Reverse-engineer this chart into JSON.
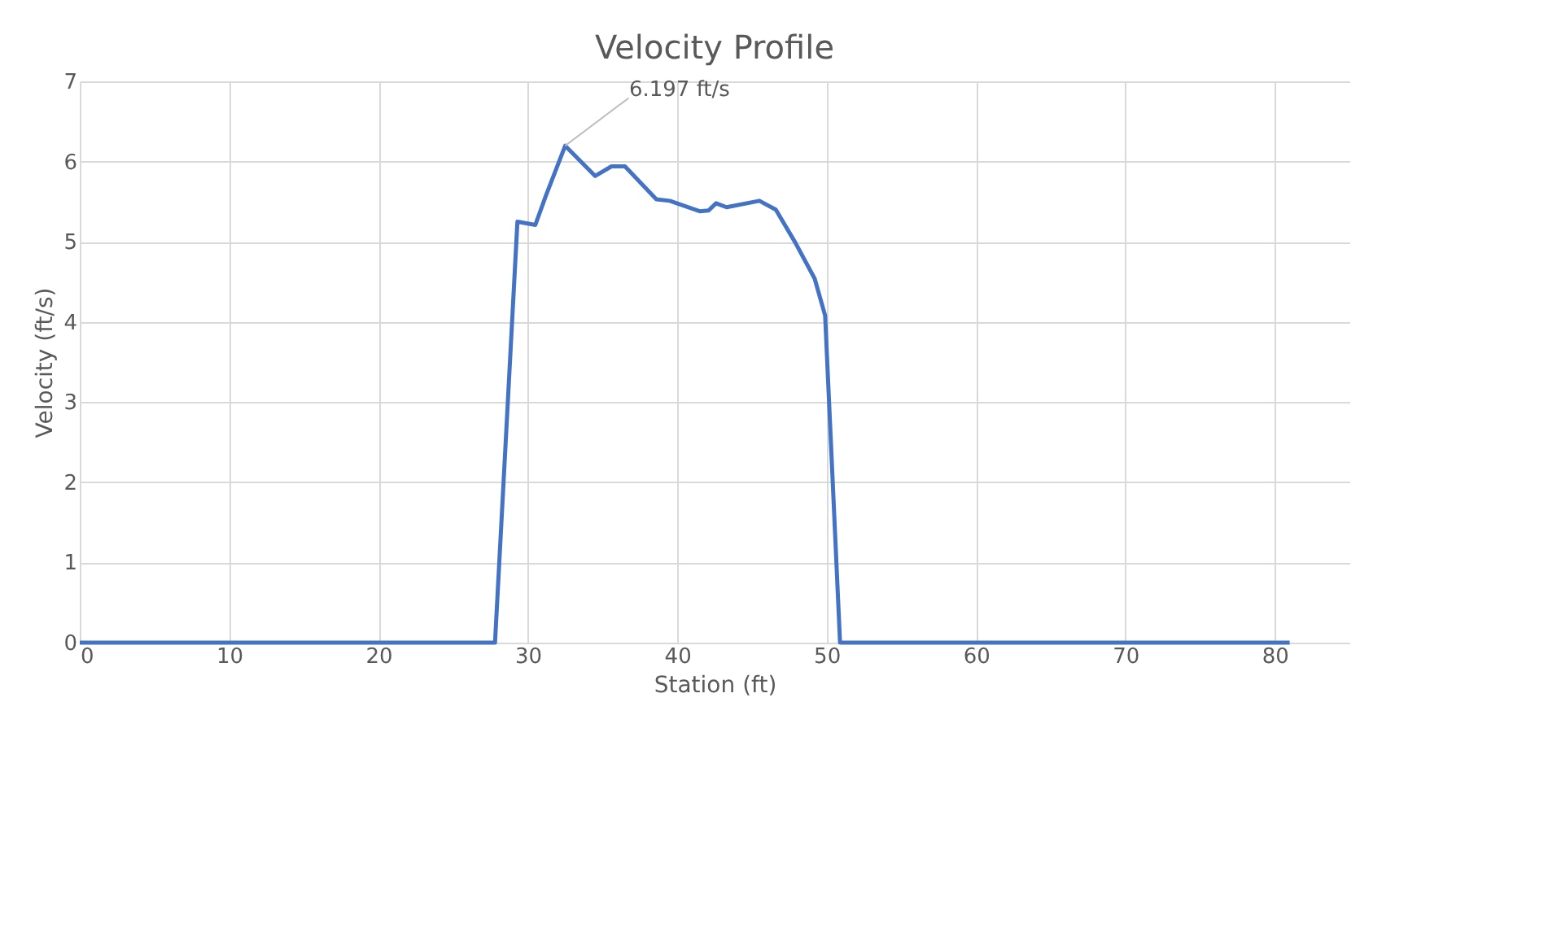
{
  "chart_data": {
    "type": "line",
    "title": "Velocity Profile",
    "xlabel": "Station (ft)",
    "ylabel": "Velocity (ft/s)",
    "x": [
      0,
      27.8,
      29.3,
      30.5,
      31.2,
      32.5,
      34.5,
      35.6,
      36.5,
      38.6,
      39.5,
      41.5,
      42.1,
      42.6,
      43.3,
      45.5,
      46.6,
      47.9,
      49.2,
      49.9,
      50.9,
      81.0
    ],
    "series": [
      {
        "color": "#4472c4",
        "values": [
          0,
          0,
          5.25,
          5.21,
          5.57,
          6.197,
          5.82,
          5.94,
          5.94,
          5.53,
          5.51,
          5.38,
          5.39,
          5.48,
          5.43,
          5.51,
          5.4,
          4.99,
          4.54,
          4.08,
          0,
          0
        ]
      }
    ],
    "xlim": [
      0,
      85
    ],
    "xticks": [
      0,
      10,
      20,
      30,
      40,
      50,
      60,
      70,
      80
    ],
    "ylim": [
      0,
      7
    ],
    "yticks": [
      0,
      1,
      2,
      3,
      4,
      5,
      6,
      7
    ],
    "grid": true,
    "marker": "none",
    "line_style": "solid",
    "annotations": [
      {
        "text": "6.197 ft/s",
        "x": 32.5,
        "y": 6.197
      }
    ]
  }
}
